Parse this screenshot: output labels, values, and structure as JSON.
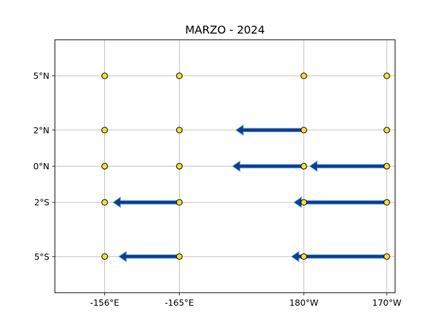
{
  "chart_data": {
    "type": "quiver",
    "title": "MARZO - 2024",
    "grid": true,
    "x_tick_labels": [
      "-156°E",
      "-165°E",
      "180°W",
      "170°W"
    ],
    "y_tick_labels": [
      "5°N",
      "2°N",
      "0°N",
      "2°S",
      "5°S"
    ],
    "xlim": [
      -0.6,
      3.5
    ],
    "ylim": [
      -7,
      7
    ],
    "x_ticks": [
      0,
      0.9,
      2.4,
      3.4
    ],
    "y_ticks": [
      5,
      2,
      0,
      -2,
      -5
    ],
    "points": [
      {
        "x": 0,
        "y": 5
      },
      {
        "x": 0.9,
        "y": 5
      },
      {
        "x": 2.4,
        "y": 5
      },
      {
        "x": 3.4,
        "y": 5
      },
      {
        "x": 0,
        "y": 2
      },
      {
        "x": 0.9,
        "y": 2
      },
      {
        "x": 2.4,
        "y": 2
      },
      {
        "x": 3.4,
        "y": 2
      },
      {
        "x": 0,
        "y": 0
      },
      {
        "x": 0.9,
        "y": 0
      },
      {
        "x": 2.4,
        "y": 0
      },
      {
        "x": 3.4,
        "y": 0
      },
      {
        "x": 0,
        "y": -2
      },
      {
        "x": 0.9,
        "y": -2
      },
      {
        "x": 2.4,
        "y": -2
      },
      {
        "x": 3.4,
        "y": -2
      },
      {
        "x": 0,
        "y": -5
      },
      {
        "x": 0.9,
        "y": -5
      },
      {
        "x": 2.4,
        "y": -5
      },
      {
        "x": 3.4,
        "y": -5
      }
    ],
    "vectors": [
      {
        "x": 2.4,
        "y": 2,
        "u": -0.82,
        "v": 0
      },
      {
        "x": 2.4,
        "y": 0,
        "u": -0.86,
        "v": 0
      },
      {
        "x": 3.4,
        "y": 0,
        "u": -0.93,
        "v": 0
      },
      {
        "x": 0.9,
        "y": -2,
        "u": -0.8,
        "v": 0
      },
      {
        "x": 3.4,
        "y": -2,
        "u": -1.12,
        "v": 0
      },
      {
        "x": 0.9,
        "y": -5,
        "u": -0.73,
        "v": 0
      },
      {
        "x": 3.4,
        "y": -5,
        "u": -1.15,
        "v": 0
      }
    ],
    "colors": {
      "point_fill": "#f0dd3c",
      "point_edge": "#000000",
      "arrow_fill": "#0b3d91",
      "arrow_edge": "#6fa8dc",
      "grid": "#b0b0b0"
    }
  }
}
